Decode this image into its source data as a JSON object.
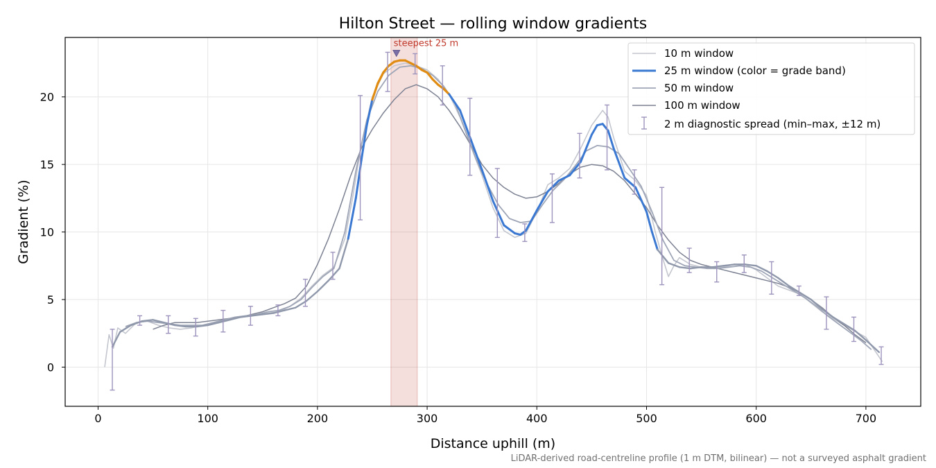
{
  "chart_data": {
    "type": "line",
    "title": "Hilton Street — rolling window gradients",
    "xlabel": "Distance uphill (m)",
    "ylabel": "Gradient (%)",
    "xlim": [
      -30,
      750
    ],
    "ylim": [
      -2.9,
      24.4
    ],
    "xticks": [
      0,
      100,
      200,
      300,
      400,
      500,
      600,
      700
    ],
    "yticks": [
      0,
      5,
      10,
      15,
      20
    ],
    "grid": true,
    "legend_position": "top-right",
    "footnote": "LiDAR-derived road-centreline profile (1 m DTM, bilinear) — not a surveyed asphalt gradient",
    "highlight": {
      "label": "steepest 25 m",
      "x_range": [
        267,
        291
      ],
      "marker_x": 272,
      "marker_y": 23.2,
      "color": "#c0392b"
    },
    "series": [
      {
        "name": "10 m window",
        "color": "#c3c6ce",
        "x": [
          6,
          10,
          14,
          18,
          25,
          35,
          45,
          55,
          65,
          75,
          85,
          95,
          105,
          115,
          125,
          135,
          145,
          155,
          165,
          175,
          185,
          195,
          205,
          215,
          225,
          232,
          240,
          250,
          260,
          270,
          280,
          290,
          300,
          310,
          320,
          330,
          340,
          350,
          360,
          370,
          380,
          390,
          400,
          410,
          420,
          430,
          440,
          450,
          460,
          465,
          470,
          480,
          490,
          500,
          508,
          515,
          520,
          525,
          530,
          540,
          550,
          560,
          570,
          580,
          590,
          600,
          620,
          640,
          660,
          680,
          700,
          715
        ],
        "y": [
          0,
          2.4,
          1.4,
          2.9,
          2.5,
          3.3,
          3.4,
          3.1,
          2.9,
          2.8,
          2.9,
          3.1,
          3.2,
          3.5,
          3.7,
          3.8,
          3.9,
          4.0,
          4.1,
          4.5,
          5.1,
          6.0,
          6.8,
          7.4,
          9.5,
          12.5,
          16.5,
          20.0,
          21.7,
          22.3,
          22.5,
          22.3,
          22.0,
          21.3,
          20.2,
          18.5,
          16.3,
          14.2,
          11.8,
          10.1,
          9.6,
          9.9,
          11.5,
          13.5,
          14.0,
          14.7,
          16.2,
          17.9,
          19.0,
          18.5,
          17.0,
          14.5,
          13.8,
          12.7,
          10.0,
          8.0,
          6.7,
          7.5,
          8.1,
          7.6,
          7.4,
          7.3,
          7.4,
          7.6,
          7.6,
          7.2,
          6.0,
          5.4,
          4.1,
          3.1,
          2.2,
          0.4
        ]
      },
      {
        "name": "25 m window (color = grade band)",
        "color": "#3a78d2",
        "band_colors": {
          "above_20": "#e08c12",
          "below_20": "#3a78d2"
        },
        "x": [
          13,
          20,
          30,
          40,
          50,
          60,
          70,
          80,
          90,
          100,
          110,
          120,
          130,
          140,
          150,
          160,
          170,
          180,
          190,
          200,
          210,
          220,
          228,
          235,
          240,
          245,
          250,
          255,
          260,
          265,
          270,
          275,
          280,
          285,
          290,
          295,
          300,
          305,
          310,
          315,
          320,
          330,
          340,
          350,
          360,
          370,
          380,
          385,
          390,
          400,
          410,
          420,
          430,
          440,
          450,
          455,
          460,
          465,
          470,
          480,
          490,
          500,
          505,
          510,
          520,
          530,
          540,
          550,
          560,
          570,
          580,
          590,
          600,
          610,
          620,
          630,
          640,
          650,
          660,
          670,
          680,
          690,
          700,
          712
        ],
        "y": [
          1.5,
          2.6,
          3.1,
          3.4,
          3.5,
          3.3,
          3.1,
          3.0,
          3.0,
          3.1,
          3.3,
          3.5,
          3.7,
          3.8,
          3.9,
          4.0,
          4.2,
          4.4,
          4.9,
          5.6,
          6.4,
          7.3,
          9.5,
          12.5,
          15.3,
          17.9,
          19.8,
          21.0,
          21.8,
          22.3,
          22.6,
          22.7,
          22.7,
          22.5,
          22.3,
          22.0,
          21.8,
          21.3,
          20.9,
          20.6,
          20.2,
          19.0,
          16.8,
          14.6,
          12.3,
          10.5,
          9.9,
          9.8,
          10.1,
          11.6,
          13.0,
          13.8,
          14.2,
          15.2,
          17.2,
          17.9,
          18.0,
          17.5,
          16.2,
          14.0,
          13.3,
          11.5,
          10.0,
          8.7,
          7.7,
          7.4,
          7.3,
          7.4,
          7.4,
          7.5,
          7.6,
          7.6,
          7.5,
          7.1,
          6.6,
          6.0,
          5.5,
          5.0,
          4.3,
          3.7,
          3.2,
          2.7,
          2.0,
          1.1
        ]
      },
      {
        "name": "50 m window",
        "color": "#9ea5b6",
        "x": [
          25,
          35,
          45,
          55,
          65,
          75,
          85,
          95,
          105,
          115,
          125,
          135,
          145,
          155,
          165,
          175,
          185,
          195,
          205,
          215,
          225,
          235,
          245,
          255,
          265,
          275,
          285,
          295,
          305,
          315,
          325,
          335,
          345,
          355,
          365,
          375,
          385,
          395,
          405,
          415,
          425,
          435,
          445,
          455,
          465,
          475,
          485,
          495,
          505,
          515,
          525,
          535,
          545,
          555,
          565,
          575,
          585,
          595,
          605,
          615,
          625,
          635,
          645,
          655,
          665,
          675,
          685,
          695,
          705
        ],
        "y": [
          3.0,
          3.3,
          3.4,
          3.3,
          3.2,
          3.1,
          3.1,
          3.1,
          3.3,
          3.5,
          3.7,
          3.8,
          3.9,
          4.1,
          4.2,
          4.5,
          5.0,
          5.9,
          6.7,
          7.3,
          10.0,
          14.5,
          18.3,
          20.4,
          21.6,
          22.2,
          22.3,
          22.1,
          21.6,
          20.8,
          19.6,
          17.5,
          15.3,
          13.5,
          12.0,
          11.0,
          10.7,
          10.8,
          12.0,
          13.1,
          13.9,
          14.9,
          16.0,
          16.4,
          16.3,
          15.8,
          14.6,
          13.4,
          11.5,
          9.4,
          7.9,
          7.5,
          7.4,
          7.3,
          7.3,
          7.4,
          7.5,
          7.4,
          7.1,
          6.6,
          6.1,
          5.6,
          5.1,
          4.5,
          3.8,
          3.2,
          2.6,
          2.0,
          1.3
        ]
      },
      {
        "name": "100 m window",
        "color": "#7c8192",
        "x": [
          50,
          60,
          70,
          80,
          90,
          100,
          110,
          120,
          130,
          140,
          150,
          160,
          170,
          180,
          190,
          200,
          210,
          220,
          230,
          240,
          250,
          260,
          270,
          280,
          290,
          300,
          310,
          320,
          330,
          340,
          350,
          360,
          370,
          380,
          390,
          400,
          410,
          420,
          430,
          440,
          450,
          460,
          470,
          480,
          490,
          500,
          510,
          520,
          530,
          540,
          550,
          560,
          570,
          580,
          590,
          600,
          610,
          620,
          630,
          640,
          650,
          660,
          670,
          680,
          690,
          700
        ],
        "y": [
          2.8,
          3.1,
          3.3,
          3.3,
          3.3,
          3.4,
          3.5,
          3.6,
          3.7,
          3.9,
          4.1,
          4.4,
          4.7,
          5.1,
          6.0,
          7.6,
          9.5,
          11.7,
          14.1,
          16.2,
          17.6,
          18.8,
          19.8,
          20.6,
          20.9,
          20.6,
          20.0,
          19.0,
          17.8,
          16.4,
          15.0,
          14.0,
          13.3,
          12.8,
          12.5,
          12.6,
          13.0,
          13.6,
          14.3,
          14.8,
          15.0,
          14.9,
          14.5,
          13.8,
          12.8,
          11.8,
          10.5,
          9.4,
          8.5,
          7.9,
          7.6,
          7.4,
          7.2,
          7.0,
          6.8,
          6.6,
          6.4,
          6.2,
          5.9,
          5.5,
          5.0,
          4.4,
          3.7,
          3.1,
          2.4,
          1.8
        ]
      },
      {
        "name": "2 m diagnostic spread (min–max, ±12 m)",
        "color": "#9d93bd",
        "type": "errorbar",
        "x": [
          13,
          38,
          64,
          89,
          114,
          139,
          164,
          189,
          214,
          239,
          264,
          289,
          314,
          339,
          364,
          389,
          414,
          439,
          464,
          489,
          514,
          539,
          564,
          589,
          614,
          639,
          664,
          689,
          714
        ],
        "low": [
          -1.7,
          3.1,
          2.5,
          2.3,
          2.6,
          3.1,
          3.8,
          4.5,
          6.5,
          10.9,
          20.4,
          21.7,
          19.4,
          14.2,
          9.6,
          9.3,
          10.7,
          14.0,
          14.6,
          12.8,
          6.1,
          7.0,
          6.3,
          7.0,
          5.4,
          5.3,
          2.8,
          1.9,
          0.2
        ],
        "high": [
          2.8,
          3.8,
          3.8,
          3.6,
          4.2,
          4.5,
          4.6,
          6.5,
          8.5,
          20.1,
          23.3,
          23.2,
          22.3,
          19.9,
          14.7,
          10.6,
          14.3,
          17.3,
          19.4,
          14.6,
          13.3,
          8.8,
          7.8,
          8.3,
          7.8,
          6.0,
          5.2,
          3.7,
          1.5
        ]
      }
    ]
  }
}
